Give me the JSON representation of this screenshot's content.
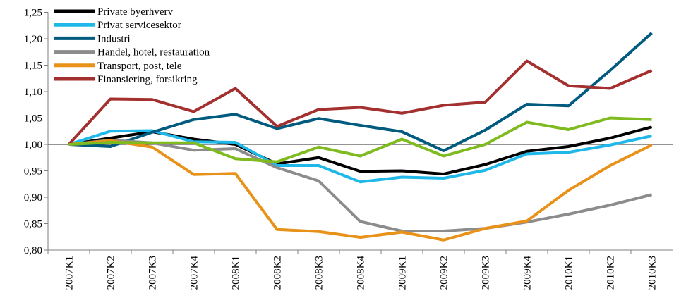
{
  "chart_data": {
    "type": "line",
    "categories": [
      "2007K1",
      "2007K2",
      "2007K3",
      "2007K4",
      "2008K1",
      "2008K2",
      "2008K3",
      "2008K4",
      "2009K1",
      "2009K2",
      "2009K3",
      "2009K4",
      "2010K1",
      "2010K2",
      "2010K3"
    ],
    "series": [
      {
        "name": "Private byerhverv",
        "color": "#000000",
        "values": [
          1.0,
          1.012,
          1.024,
          1.01,
          1.0,
          0.963,
          0.975,
          0.949,
          0.95,
          0.944,
          0.962,
          0.987,
          0.996,
          1.012,
          1.033
        ]
      },
      {
        "name": "Privat servicesektor",
        "color": "#1fb8e8",
        "values": [
          1.0,
          1.025,
          1.026,
          1.005,
          1.004,
          0.96,
          0.96,
          0.929,
          0.938,
          0.936,
          0.951,
          0.982,
          0.985,
          0.999,
          1.016
        ]
      },
      {
        "name": "Industri",
        "color": "#005b7f",
        "values": [
          1.0,
          0.996,
          1.023,
          1.047,
          1.057,
          1.03,
          1.049,
          1.036,
          1.024,
          0.988,
          1.027,
          1.076,
          1.073,
          1.14,
          1.211
        ]
      },
      {
        "name": "Handel, hotel, restauration",
        "color": "#8c8c8c",
        "values": [
          1.0,
          1.008,
          1.003,
          0.989,
          0.992,
          0.956,
          0.931,
          0.854,
          0.836,
          0.836,
          0.841,
          0.853,
          0.868,
          0.885,
          0.905
        ]
      },
      {
        "name": "Transport, post, tele",
        "color": "#e8921a",
        "values": [
          1.0,
          1.007,
          0.995,
          0.943,
          0.945,
          0.839,
          0.835,
          0.824,
          0.834,
          0.819,
          0.841,
          0.855,
          0.913,
          0.96,
          0.999
        ]
      },
      {
        "name": "Finansiering, forsikring",
        "color": "#a3302f",
        "values": [
          1.0,
          1.086,
          1.085,
          1.062,
          1.106,
          1.034,
          1.066,
          1.07,
          1.059,
          1.074,
          1.08,
          1.158,
          1.111,
          1.106,
          1.14
        ]
      },
      {
        "color": "#7fba1f",
        "values": [
          1.0,
          1.004,
          1.003,
          1.003,
          0.973,
          0.967,
          0.995,
          0.978,
          1.01,
          0.978,
          1.0,
          1.042,
          1.028,
          1.05,
          1.047
        ]
      }
    ],
    "ylim": [
      0.8,
      1.25
    ],
    "yticks": [
      {
        "value": 0.8,
        "label": "0,80"
      },
      {
        "value": 0.85,
        "label": "0,85"
      },
      {
        "value": 0.9,
        "label": "0,90"
      },
      {
        "value": 0.95,
        "label": "0,95"
      },
      {
        "value": 1.0,
        "label": "1,00"
      },
      {
        "value": 1.05,
        "label": "1,05"
      },
      {
        "value": 1.1,
        "label": "1,10"
      },
      {
        "value": 1.15,
        "label": "1,15"
      },
      {
        "value": 1.2,
        "label": "1,20"
      },
      {
        "value": 1.25,
        "label": "1,25"
      }
    ],
    "grid": false,
    "legend": "top-left"
  }
}
